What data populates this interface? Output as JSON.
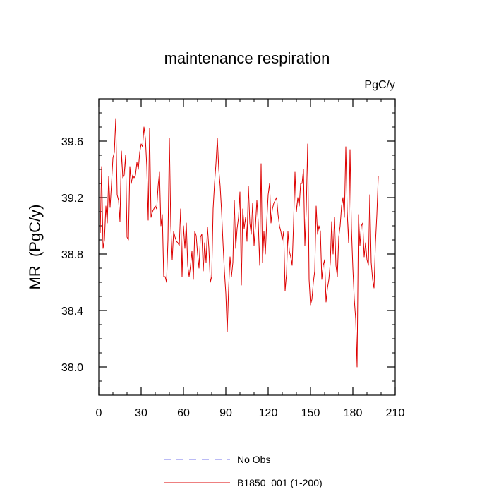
{
  "chart_data": {
    "type": "line",
    "title": "maintenance respiration",
    "units_label": "PgC/y",
    "ylabel": "MR  (PgC/y)",
    "xlabel": "",
    "xlim": [
      0,
      210
    ],
    "ylim": [
      37.8,
      39.9
    ],
    "x_ticks": [
      0,
      30,
      60,
      90,
      120,
      150,
      180,
      210
    ],
    "x_tick_labels": [
      "0",
      "30",
      "60",
      "90",
      "120",
      "150",
      "180",
      "210"
    ],
    "y_ticks": [
      38.0,
      38.4,
      38.8,
      39.2,
      39.6
    ],
    "y_tick_labels": [
      "38.0",
      "38.4",
      "38.8",
      "39.2",
      "39.6"
    ],
    "legend_position": "bottom-center",
    "series": [
      {
        "name": "No Obs",
        "color": "#7777ee",
        "dash": "dashed",
        "x": [],
        "values": []
      },
      {
        "name": "B1850_001 (1-200)",
        "color": "#dd0000",
        "dash": "solid",
        "x_start": 1,
        "x_step": 1,
        "values": [
          38.95,
          39.42,
          38.84,
          38.9,
          39.14,
          39.02,
          39.35,
          39.13,
          39.3,
          39.48,
          39.52,
          39.76,
          39.22,
          39.18,
          39.03,
          39.53,
          39.34,
          39.36,
          39.5,
          38.92,
          38.9,
          39.42,
          39.3,
          39.36,
          39.34,
          39.36,
          39.45,
          39.4,
          39.52,
          39.58,
          39.56,
          39.7,
          39.62,
          39.42,
          39.04,
          39.69,
          39.06,
          39.1,
          39.12,
          39.14,
          39.12,
          39.28,
          39.38,
          39.0,
          39.08,
          38.64,
          38.64,
          38.6,
          38.9,
          39.62,
          39.0,
          38.76,
          38.96,
          38.92,
          38.89,
          38.88,
          38.86,
          39.12,
          38.64,
          39.0,
          38.84,
          39.02,
          38.72,
          38.64,
          38.72,
          38.82,
          38.62,
          38.96,
          38.93,
          38.8,
          38.7,
          38.92,
          38.94,
          38.68,
          38.88,
          38.74,
          38.99,
          38.84,
          38.6,
          38.64,
          39.12,
          39.3,
          39.44,
          39.62,
          39.4,
          39.28,
          39.1,
          38.88,
          38.68,
          38.52,
          38.25,
          38.56,
          38.78,
          38.64,
          38.74,
          39.18,
          38.84,
          38.98,
          39.06,
          39.24,
          38.58,
          39.12,
          38.98,
          39.06,
          38.89,
          39.28,
          39.02,
          38.94,
          39.16,
          38.86,
          39.0,
          39.18,
          39.02,
          38.72,
          39.44,
          38.74,
          38.96,
          38.8,
          39.03,
          39.22,
          39.3,
          39.02,
          39.12,
          39.16,
          39.18,
          39.2,
          39.08,
          39.0,
          38.96,
          38.9,
          38.96,
          38.54,
          38.66,
          38.96,
          38.82,
          38.78,
          38.72,
          39.02,
          39.38,
          39.1,
          39.2,
          39.14,
          39.3,
          39.3,
          39.4,
          38.86,
          39.12,
          39.58,
          38.62,
          38.44,
          38.48,
          38.6,
          38.68,
          39.14,
          38.94,
          39.0,
          38.96,
          38.62,
          38.72,
          38.76,
          38.46,
          38.56,
          38.62,
          38.74,
          39.03,
          38.8,
          39.06,
          38.72,
          38.64,
          38.92,
          39.0,
          39.14,
          39.2,
          39.06,
          39.56,
          39.1,
          38.88,
          39.54,
          38.98,
          38.7,
          38.48,
          38.34,
          38.0,
          39.08,
          38.86,
          39.0,
          39.02,
          38.78,
          38.88,
          38.76,
          38.72,
          39.22,
          38.74,
          38.62,
          38.56,
          38.88,
          39.08,
          39.35
        ]
      }
    ]
  }
}
